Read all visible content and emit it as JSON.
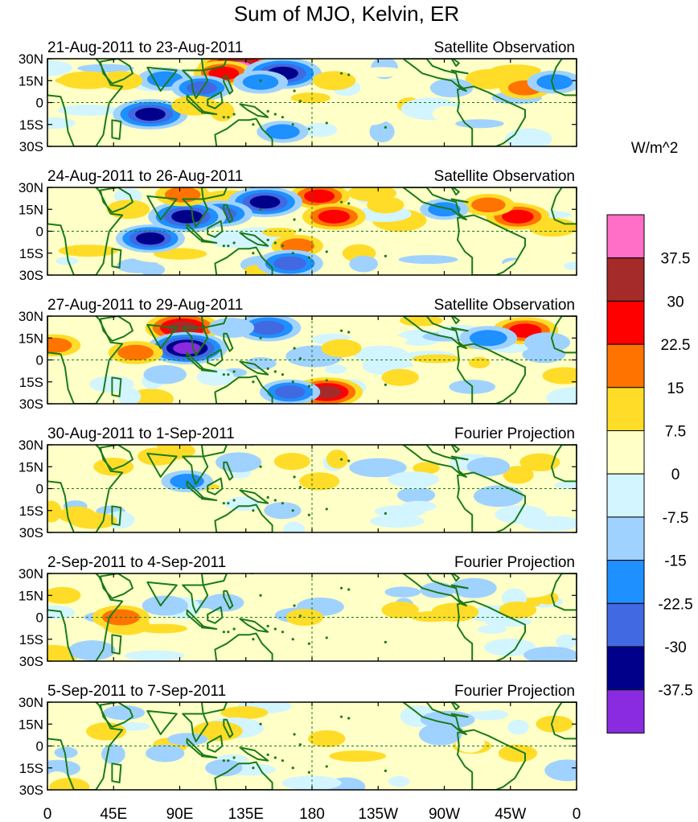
{
  "chart_data": {
    "type": "heatmap",
    "title": "Sum of MJO, Kelvin, ER",
    "units_label": "W/m^2",
    "colorbar": {
      "levels": [
        "37.5",
        "30",
        "22.5",
        "15",
        "7.5",
        "0",
        "-7.5",
        "-15",
        "-22.5",
        "-30",
        "-37.5"
      ],
      "colors": [
        "#ff6ec7",
        "#a52a2a",
        "#ff0000",
        "#ff7300",
        "#ffdc28",
        "#ffffc8",
        "#d2f5ff",
        "#a0d2ff",
        "#1e90ff",
        "#4169e1",
        "#00008b",
        "#8a2be2"
      ]
    },
    "lat_labels": [
      "30N",
      "15N",
      "0",
      "15S",
      "30S"
    ],
    "lon_labels": [
      "0",
      "45E",
      "90E",
      "135E",
      "180",
      "135W",
      "90W",
      "45W",
      "0"
    ],
    "panels": [
      {
        "date_range": "21-Aug-2011 to 23-Aug-2011",
        "source": "Satellite Observation",
        "anomalies": [
          {
            "lon": 130,
            "lat": 24,
            "value": 38
          },
          {
            "lon": 120,
            "lat": 20,
            "value": 24
          },
          {
            "lon": 160,
            "lat": 20,
            "value": -36
          },
          {
            "lon": 145,
            "lat": 14,
            "value": -20
          },
          {
            "lon": 70,
            "lat": -8,
            "value": -34
          },
          {
            "lon": 80,
            "lat": 16,
            "value": -20
          },
          {
            "lon": 105,
            "lat": 10,
            "value": -24
          },
          {
            "lon": 50,
            "lat": 15,
            "value": 12
          },
          {
            "lon": 100,
            "lat": -2,
            "value": 14
          },
          {
            "lon": 195,
            "lat": 15,
            "value": 12
          },
          {
            "lon": 300,
            "lat": 16,
            "value": 14
          },
          {
            "lon": 325,
            "lat": 10,
            "value": 18
          },
          {
            "lon": 345,
            "lat": 14,
            "value": -20
          },
          {
            "lon": 275,
            "lat": 10,
            "value": -12
          },
          {
            "lon": 160,
            "lat": -20,
            "value": -18
          },
          {
            "lon": 220,
            "lat": -10,
            "value": 6
          }
        ]
      },
      {
        "date_range": "24-Aug-2011 to 26-Aug-2011",
        "source": "Satellite Observation",
        "anomalies": [
          {
            "lon": 185,
            "lat": 24,
            "value": 24
          },
          {
            "lon": 195,
            "lat": 10,
            "value": 26
          },
          {
            "lon": 148,
            "lat": 20,
            "value": -34
          },
          {
            "lon": 118,
            "lat": 12,
            "value": -26
          },
          {
            "lon": 95,
            "lat": 10,
            "value": -36
          },
          {
            "lon": 92,
            "lat": 25,
            "value": 20
          },
          {
            "lon": 70,
            "lat": -5,
            "value": -30
          },
          {
            "lon": 170,
            "lat": -10,
            "value": 18
          },
          {
            "lon": 165,
            "lat": -22,
            "value": -28
          },
          {
            "lon": 320,
            "lat": 10,
            "value": 26
          },
          {
            "lon": 300,
            "lat": 18,
            "value": 18
          },
          {
            "lon": 270,
            "lat": 15,
            "value": -16
          },
          {
            "lon": 55,
            "lat": 15,
            "value": 12
          },
          {
            "lon": 230,
            "lat": 18,
            "value": 8
          }
        ]
      },
      {
        "date_range": "27-Aug-2011 to 29-Aug-2011",
        "source": "Satellite Observation",
        "anomalies": [
          {
            "lon": 92,
            "lat": 22,
            "value": 34
          },
          {
            "lon": 95,
            "lat": 8,
            "value": -38
          },
          {
            "lon": 150,
            "lat": 22,
            "value": -28
          },
          {
            "lon": 190,
            "lat": -22,
            "value": 32
          },
          {
            "lon": 165,
            "lat": -22,
            "value": -24
          },
          {
            "lon": 60,
            "lat": 5,
            "value": 20
          },
          {
            "lon": 5,
            "lat": 10,
            "value": 18
          },
          {
            "lon": 125,
            "lat": 22,
            "value": -14
          },
          {
            "lon": 325,
            "lat": 20,
            "value": 28
          },
          {
            "lon": 300,
            "lat": 15,
            "value": -22
          },
          {
            "lon": 340,
            "lat": 12,
            "value": -14
          },
          {
            "lon": 200,
            "lat": 8,
            "value": 10
          },
          {
            "lon": 80,
            "lat": -10,
            "value": -12
          },
          {
            "lon": 240,
            "lat": -12,
            "value": 8
          }
        ]
      },
      {
        "date_range": "30-Aug-2011 to 1-Sep-2011",
        "source": "Fourier Projection",
        "anomalies": [
          {
            "lon": 95,
            "lat": 5,
            "value": -18
          },
          {
            "lon": 130,
            "lat": 18,
            "value": -14
          },
          {
            "lon": 75,
            "lat": 22,
            "value": 10
          },
          {
            "lon": 45,
            "lat": 15,
            "value": 10
          },
          {
            "lon": 185,
            "lat": 5,
            "value": 10
          },
          {
            "lon": 300,
            "lat": 15,
            "value": -12
          },
          {
            "lon": 335,
            "lat": 18,
            "value": 10
          },
          {
            "lon": 20,
            "lat": -18,
            "value": 8
          },
          {
            "lon": 160,
            "lat": -15,
            "value": -8
          },
          {
            "lon": 250,
            "lat": 5,
            "value": -6
          }
        ]
      },
      {
        "date_range": "2-Sep-2011 to 4-Sep-2011",
        "source": "Fourier Projection",
        "anomalies": [
          {
            "lon": 50,
            "lat": 0,
            "value": 22
          },
          {
            "lon": 80,
            "lat": 8,
            "value": -14
          },
          {
            "lon": 120,
            "lat": 10,
            "value": -10
          },
          {
            "lon": 175,
            "lat": 0,
            "value": 8
          },
          {
            "lon": 290,
            "lat": 20,
            "value": -14
          },
          {
            "lon": 240,
            "lat": 5,
            "value": 8
          },
          {
            "lon": 320,
            "lat": 5,
            "value": 8
          },
          {
            "lon": 10,
            "lat": 15,
            "value": 8
          }
        ]
      },
      {
        "date_range": "5-Sep-2011 to 7-Sep-2011",
        "source": "Fourier Projection",
        "anomalies": [
          {
            "lon": 40,
            "lat": 10,
            "value": 10
          },
          {
            "lon": 80,
            "lat": -5,
            "value": -9
          },
          {
            "lon": 120,
            "lat": -15,
            "value": -8
          },
          {
            "lon": 190,
            "lat": 5,
            "value": 8
          },
          {
            "lon": 270,
            "lat": 10,
            "value": -8
          },
          {
            "lon": 320,
            "lat": -5,
            "value": 9
          },
          {
            "lon": 15,
            "lat": -28,
            "value": 10
          },
          {
            "lon": 345,
            "lat": 15,
            "value": 8
          }
        ]
      }
    ]
  }
}
